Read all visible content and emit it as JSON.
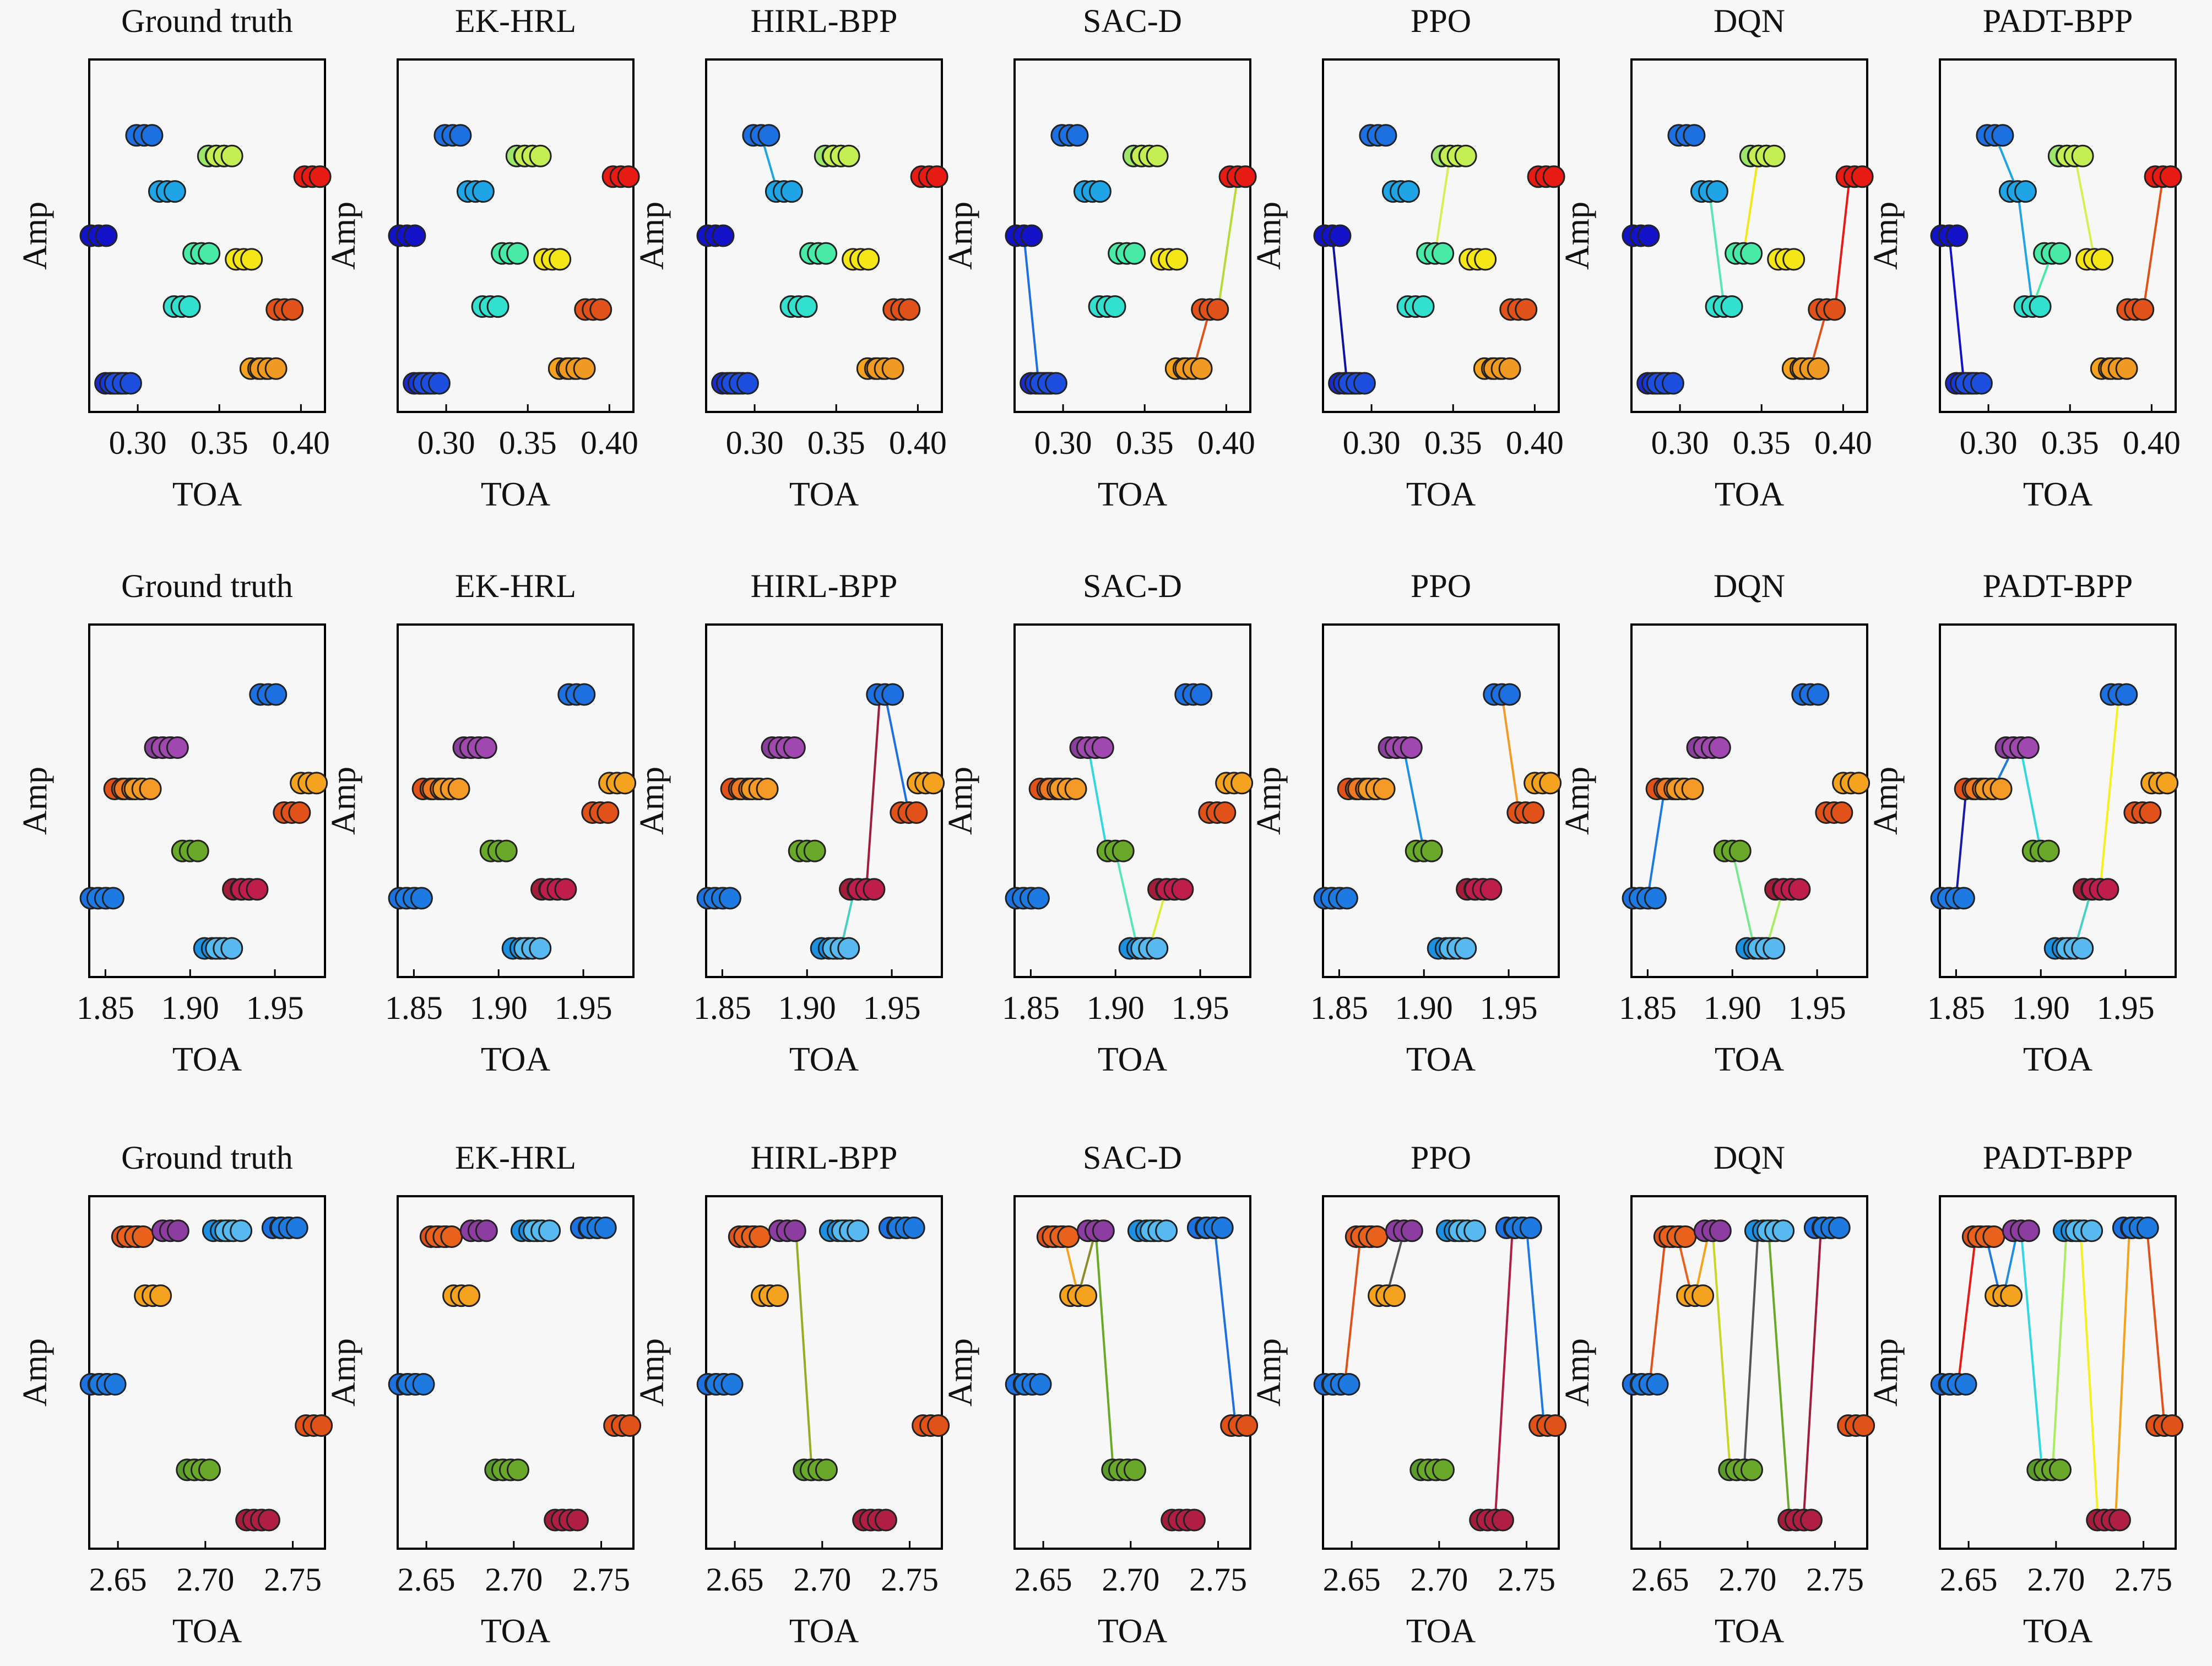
{
  "figure": {
    "axis_ylabel": "Amp",
    "axis_xlabel": "TOA",
    "methods": [
      "Ground truth",
      "EK-HRL",
      "HIRL-BPP",
      "SAC-D",
      "PPO",
      "DQN",
      "PADT-BPP"
    ]
  },
  "chart_data": [
    {
      "type": "scatter",
      "row": 1,
      "xlabel": "TOA",
      "ylabel": "Amp",
      "xlim": [
        0.275,
        0.41
      ],
      "ylim": [
        0,
        1
      ],
      "xticks": [
        "0.30",
        "0.35",
        "0.40"
      ],
      "xtick_values": [
        0.3,
        0.35,
        0.4
      ],
      "points": [
        {
          "x": 0.276,
          "y": 0.5,
          "color": "#1212c8"
        },
        {
          "x": 0.285,
          "y": 0.0,
          "color": "#1a2ad0"
        },
        {
          "x": 0.288,
          "y": 0.0,
          "color": "#1a3ad8"
        },
        {
          "x": 0.291,
          "y": 0.0,
          "color": "#1e4ee0"
        },
        {
          "x": 0.304,
          "y": 0.84,
          "color": "#1e6fe0"
        },
        {
          "x": 0.318,
          "y": 0.65,
          "color": "#1fa5e6"
        },
        {
          "x": 0.327,
          "y": 0.26,
          "color": "#32e0d0"
        },
        {
          "x": 0.339,
          "y": 0.44,
          "color": "#48eaa5"
        },
        {
          "x": 0.348,
          "y": 0.77,
          "color": "#9be66b"
        },
        {
          "x": 0.353,
          "y": 0.77,
          "color": "#c5ee55"
        },
        {
          "x": 0.365,
          "y": 0.42,
          "color": "#f5e618"
        },
        {
          "x": 0.374,
          "y": 0.05,
          "color": "#f5a21e"
        },
        {
          "x": 0.38,
          "y": 0.05,
          "color": "#f09a24"
        },
        {
          "x": 0.39,
          "y": 0.25,
          "color": "#e0521a"
        },
        {
          "x": 0.407,
          "y": 0.7,
          "color": "#e81a14"
        }
      ],
      "panels": [
        {
          "method": "Ground truth",
          "links": []
        },
        {
          "method": "EK-HRL",
          "links": []
        },
        {
          "method": "HIRL-BPP",
          "links": [
            [
              0.304,
              0.84,
              0.314,
              0.65,
              "#1fa5e6"
            ]
          ]
        },
        {
          "method": "SAC-D",
          "links": [
            [
              0.276,
              0.5,
              0.285,
              0.0,
              "#1e6fe0"
            ],
            [
              0.38,
              0.05,
              0.39,
              0.25,
              "#e0521a"
            ],
            [
              0.395,
              0.25,
              0.407,
              0.7,
              "#b8d93a"
            ]
          ]
        },
        {
          "method": "PPO",
          "links": [
            [
              0.276,
              0.5,
              0.285,
              0.0,
              "#1212a0"
            ],
            [
              0.348,
              0.77,
              0.339,
              0.44,
              "#d4f055"
            ]
          ]
        },
        {
          "method": "DQN",
          "links": [
            [
              0.318,
              0.65,
              0.327,
              0.26,
              "#5ae6b8"
            ],
            [
              0.339,
              0.44,
              0.348,
              0.77,
              "#f5e618"
            ],
            [
              0.38,
              0.05,
              0.39,
              0.25,
              "#e0521a"
            ],
            [
              0.395,
              0.25,
              0.404,
              0.7,
              "#e81a14"
            ]
          ]
        },
        {
          "method": "PADT-BPP",
          "links": [
            [
              0.276,
              0.5,
              0.285,
              0.0,
              "#1212c8"
            ],
            [
              0.304,
              0.84,
              0.318,
              0.65,
              "#1fa5e6"
            ],
            [
              0.318,
              0.65,
              0.327,
              0.26,
              "#1fa5e6"
            ],
            [
              0.327,
              0.26,
              0.339,
              0.44,
              "#48eaa5"
            ],
            [
              0.348,
              0.77,
              0.353,
              0.77,
              "#48eaa5"
            ],
            [
              0.353,
              0.77,
              0.365,
              0.42,
              "#d4f055"
            ],
            [
              0.395,
              0.25,
              0.407,
              0.7,
              "#e0521a"
            ]
          ]
        }
      ]
    },
    {
      "type": "scatter",
      "row": 2,
      "xlabel": "TOA",
      "ylabel": "Amp",
      "xlim": [
        1.845,
        1.975
      ],
      "ylim": [
        0,
        1
      ],
      "xticks": [
        "1.85",
        "1.90",
        "1.95"
      ],
      "xtick_values": [
        1.85,
        1.9,
        1.95
      ],
      "points": [
        {
          "x": 1.846,
          "y": 0.17,
          "color": "#1e6fe0"
        },
        {
          "x": 1.85,
          "y": 0.17,
          "color": "#1e7ae0"
        },
        {
          "x": 1.86,
          "y": 0.54,
          "color": "#e0521a"
        },
        {
          "x": 1.866,
          "y": 0.54,
          "color": "#f07a22"
        },
        {
          "x": 1.872,
          "y": 0.54,
          "color": "#f59a26"
        },
        {
          "x": 1.884,
          "y": 0.68,
          "color": "#8c3ea0"
        },
        {
          "x": 1.888,
          "y": 0.68,
          "color": "#a048b0"
        },
        {
          "x": 1.9,
          "y": 0.33,
          "color": "#6aa82a"
        },
        {
          "x": 1.913,
          "y": 0.0,
          "color": "#1e90e0"
        },
        {
          "x": 1.92,
          "y": 0.0,
          "color": "#58b8f0"
        },
        {
          "x": 1.93,
          "y": 0.2,
          "color": "#a01e3a"
        },
        {
          "x": 1.935,
          "y": 0.2,
          "color": "#c01e4a"
        },
        {
          "x": 1.946,
          "y": 0.86,
          "color": "#1e6fe0"
        },
        {
          "x": 1.96,
          "y": 0.46,
          "color": "#e0521a"
        },
        {
          "x": 1.97,
          "y": 0.56,
          "color": "#f5a21e"
        }
      ],
      "panels": [
        {
          "method": "Ground truth",
          "links": []
        },
        {
          "method": "EK-HRL",
          "links": []
        },
        {
          "method": "HIRL-BPP",
          "links": [
            [
              1.92,
              0.0,
              1.928,
              0.2,
              "#48d0c0"
            ],
            [
              1.935,
              0.2,
              1.943,
              0.86,
              "#a01e3a"
            ],
            [
              1.946,
              0.86,
              1.96,
              0.46,
              "#1e6fe0"
            ]
          ]
        },
        {
          "method": "SAC-D",
          "links": [
            [
              1.884,
              0.68,
              1.895,
              0.33,
              "#32d8e0"
            ],
            [
              1.9,
              0.33,
              1.913,
              0.0,
              "#58e6b8"
            ],
            [
              1.92,
              0.0,
              1.93,
              0.2,
              "#d8ee3a"
            ]
          ]
        },
        {
          "method": "PPO",
          "links": [
            [
              1.888,
              0.68,
              1.9,
              0.33,
              "#1e90e0"
            ],
            [
              1.946,
              0.86,
              1.956,
              0.46,
              "#f59a26"
            ]
          ]
        },
        {
          "method": "DQN",
          "links": [
            [
              1.85,
              0.17,
              1.86,
              0.54,
              "#1e7ae0"
            ],
            [
              1.9,
              0.33,
              1.913,
              0.0,
              "#7ae690"
            ],
            [
              1.92,
              0.0,
              1.93,
              0.2,
              "#a8ee60"
            ]
          ]
        },
        {
          "method": "PADT-BPP",
          "links": [
            [
              1.85,
              0.17,
              1.856,
              0.54,
              "#1a1aa8"
            ],
            [
              1.872,
              0.54,
              1.884,
              0.68,
              "#1e7ae0"
            ],
            [
              1.888,
              0.68,
              1.9,
              0.33,
              "#32d8e0"
            ],
            [
              1.92,
              0.0,
              1.93,
              0.2,
              "#48d0c0"
            ],
            [
              1.935,
              0.2,
              1.946,
              0.86,
              "#f5f020"
            ]
          ]
        }
      ]
    },
    {
      "type": "scatter",
      "row": 3,
      "xlabel": "TOA",
      "ylabel": "Amp",
      "xlim": [
        2.638,
        2.764
      ],
      "ylim": [
        0,
        1
      ],
      "xticks": [
        "2.65",
        "2.70",
        "2.75"
      ],
      "xtick_values": [
        2.65,
        2.7,
        2.75
      ],
      "points": [
        {
          "x": 2.639,
          "y": 0.46,
          "color": "#1e6fe0"
        },
        {
          "x": 2.644,
          "y": 0.46,
          "color": "#1e7ae0"
        },
        {
          "x": 2.657,
          "y": 0.96,
          "color": "#e0521a"
        },
        {
          "x": 2.66,
          "y": 0.96,
          "color": "#e8621e"
        },
        {
          "x": 2.67,
          "y": 0.76,
          "color": "#f5a21e"
        },
        {
          "x": 2.68,
          "y": 0.98,
          "color": "#8c3ea0"
        },
        {
          "x": 2.694,
          "y": 0.17,
          "color": "#5a9a2a"
        },
        {
          "x": 2.698,
          "y": 0.17,
          "color": "#6aa82a"
        },
        {
          "x": 2.709,
          "y": 0.98,
          "color": "#1e90e0"
        },
        {
          "x": 2.716,
          "y": 0.98,
          "color": "#58b8f0"
        },
        {
          "x": 2.728,
          "y": 0.0,
          "color": "#a01e3a"
        },
        {
          "x": 2.732,
          "y": 0.0,
          "color": "#b01e44"
        },
        {
          "x": 2.743,
          "y": 0.99,
          "color": "#1e6fe0"
        },
        {
          "x": 2.748,
          "y": 0.99,
          "color": "#1e7ae0"
        },
        {
          "x": 2.762,
          "y": 0.32,
          "color": "#e0521a"
        }
      ],
      "panels": [
        {
          "method": "Ground truth",
          "links": []
        },
        {
          "method": "EK-HRL",
          "links": []
        },
        {
          "method": "HIRL-BPP",
          "links": [
            [
              2.685,
              0.98,
              2.694,
              0.17,
              "#9aaa22"
            ]
          ]
        },
        {
          "method": "SAC-D",
          "links": [
            [
              2.662,
              0.96,
              2.67,
              0.76,
              "#f5a21e"
            ],
            [
              2.67,
              0.76,
              2.68,
              0.98,
              "#8c8c2a"
            ],
            [
              2.68,
              0.98,
              2.69,
              0.17,
              "#6aa82a"
            ],
            [
              2.748,
              0.99,
              2.76,
              0.32,
              "#1e6fe0"
            ]
          ]
        },
        {
          "method": "PPO",
          "links": [
            [
              2.646,
              0.46,
              2.655,
              0.96,
              "#e0521a"
            ],
            [
              2.67,
              0.76,
              2.68,
              0.98,
              "#555555"
            ],
            [
              2.732,
              0.0,
              2.742,
              0.99,
              "#b01e44"
            ],
            [
              2.75,
              0.99,
              2.76,
              0.32,
              "#1e7ae0"
            ]
          ]
        },
        {
          "method": "DQN",
          "links": [
            [
              2.644,
              0.46,
              2.653,
              0.96,
              "#e0521a"
            ],
            [
              2.66,
              0.96,
              2.668,
              0.76,
              "#e8621e"
            ],
            [
              2.67,
              0.76,
              2.678,
              0.98,
              "#f5a21e"
            ],
            [
              2.68,
              0.98,
              2.69,
              0.17,
              "#c8d62a"
            ],
            [
              2.698,
              0.17,
              2.706,
              0.98,
              "#555555"
            ],
            [
              2.712,
              0.98,
              2.724,
              0.0,
              "#6aa82a"
            ],
            [
              2.732,
              0.0,
              2.742,
              0.99,
              "#a01e3a"
            ]
          ]
        },
        {
          "method": "PADT-BPP",
          "links": [
            [
              2.644,
              0.46,
              2.654,
              0.96,
              "#e81a14"
            ],
            [
              2.66,
              0.96,
              2.668,
              0.76,
              "#1e7ae0"
            ],
            [
              2.67,
              0.76,
              2.678,
              0.98,
              "#1e90e0"
            ],
            [
              2.68,
              0.98,
              2.692,
              0.17,
              "#32d8e0"
            ],
            [
              2.698,
              0.17,
              2.706,
              0.98,
              "#a8ee60"
            ],
            [
              2.714,
              0.98,
              2.724,
              0.0,
              "#f5f020"
            ],
            [
              2.734,
              0.0,
              2.742,
              0.99,
              "#f5a21e"
            ],
            [
              2.752,
              0.99,
              2.762,
              0.32,
              "#e0521a"
            ]
          ]
        }
      ]
    }
  ]
}
